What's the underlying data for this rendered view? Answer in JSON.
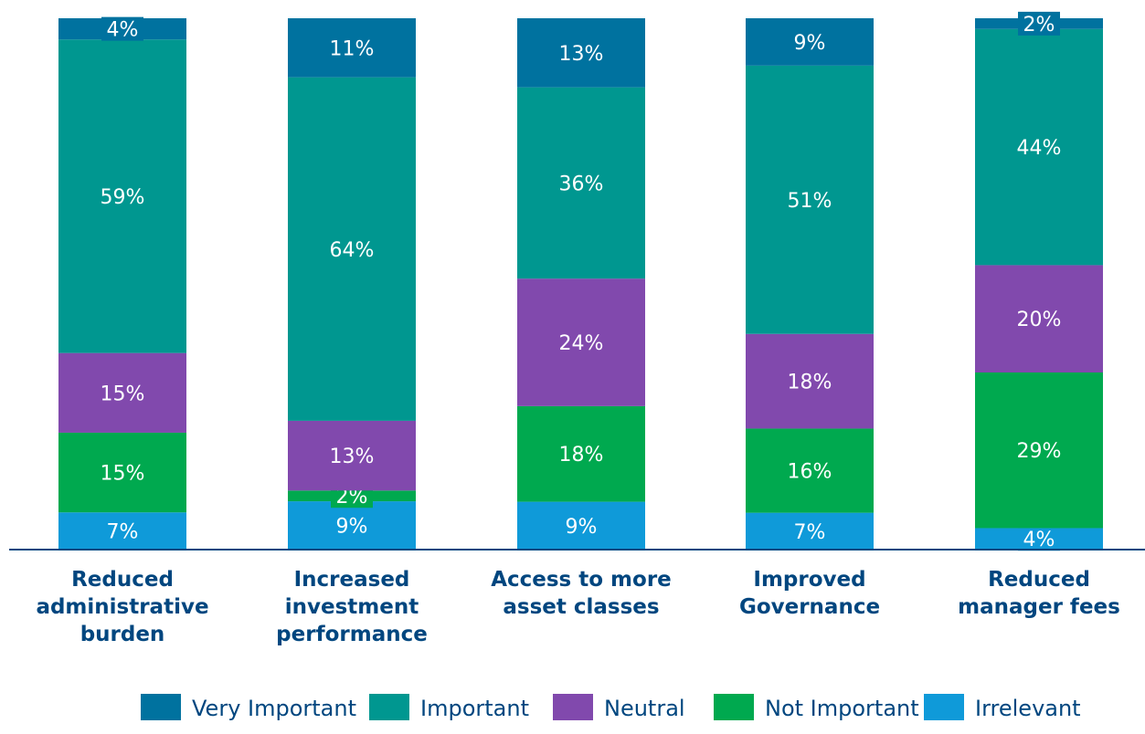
{
  "chart_data": {
    "type": "bar",
    "stacked": true,
    "orientation": "vertical",
    "categories": [
      [
        "Reduced",
        "administrative",
        "burden"
      ],
      [
        "Increased",
        "investment",
        "performance"
      ],
      [
        "Access to more",
        "asset classes"
      ],
      [
        "Improved",
        "Governance"
      ],
      [
        "Reduced",
        "manager fees"
      ]
    ],
    "series": [
      {
        "name": "Irrelevant",
        "color": "#0f9ad9",
        "values": [
          7,
          9,
          9,
          7,
          4
        ],
        "labels": [
          "7%",
          "9%",
          "9%",
          "7%",
          "4%"
        ]
      },
      {
        "name": "Not Important",
        "color": "#00a94f",
        "values": [
          15,
          2,
          18,
          16,
          29
        ],
        "labels": [
          "15%",
          "2%",
          "18%",
          "16%",
          "29%"
        ]
      },
      {
        "name": "Neutral",
        "color": "#8149ad",
        "values": [
          15,
          13,
          24,
          18,
          20
        ],
        "labels": [
          "15%",
          "13%",
          "24%",
          "18%",
          "20%"
        ]
      },
      {
        "name": "Important",
        "color": "#009790",
        "values": [
          59,
          64,
          36,
          51,
          44
        ],
        "labels": [
          "59%",
          "64%",
          "36%",
          "51%",
          "44%"
        ]
      },
      {
        "name": "Very Important",
        "color": "#00729f",
        "values": [
          4,
          11,
          13,
          9,
          2
        ],
        "labels": [
          "4%",
          "11%",
          "13%",
          "9%",
          "2%"
        ]
      }
    ],
    "legend_order": [
      "Very Important",
      "Important",
      "Neutral",
      "Not Important",
      "Irrelevant"
    ],
    "ylim": [
      0,
      100
    ],
    "grid": false,
    "legend_position": "bottom"
  }
}
